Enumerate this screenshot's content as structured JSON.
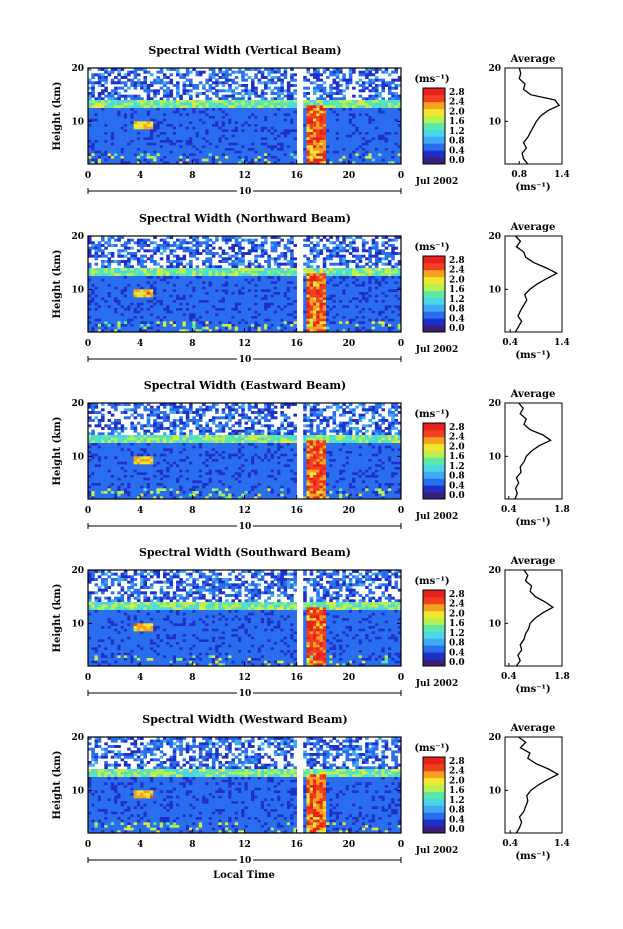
{
  "chart_data": [
    {
      "type": "heatmap",
      "title": "Spectral Width (Vertical Beam)",
      "ylabel": "Height (km)",
      "ylim": [
        2,
        20
      ],
      "y_ticks": [
        "10",
        "20"
      ],
      "xlim": [
        0,
        24
      ],
      "x_ticks": [
        "0",
        "4",
        "8",
        "12",
        "16",
        "20",
        "0"
      ],
      "date_label": "10",
      "month_label": "Jul 2002",
      "colorbar": {
        "unit": "(ms⁻¹)",
        "ticks": [
          "0.0",
          "0.4",
          "0.8",
          "1.2",
          "1.6",
          "2.0",
          "2.4",
          "2.8"
        ]
      },
      "average": {
        "title": "Average",
        "xlabel": "(ms⁻¹)",
        "x_ticks": [
          "0.8",
          "1.4"
        ],
        "xlim": [
          0.6,
          1.4
        ],
        "y_ticks": [
          "10",
          "20"
        ],
        "profile": [
          [
            0.92,
            2
          ],
          [
            0.86,
            3
          ],
          [
            0.84,
            4
          ],
          [
            0.9,
            5
          ],
          [
            0.86,
            6
          ],
          [
            0.92,
            7
          ],
          [
            0.96,
            8
          ],
          [
            1.0,
            9
          ],
          [
            1.04,
            10
          ],
          [
            1.1,
            11
          ],
          [
            1.2,
            12
          ],
          [
            1.36,
            13
          ],
          [
            1.3,
            14
          ],
          [
            0.96,
            15
          ],
          [
            0.86,
            16
          ],
          [
            0.88,
            17
          ],
          [
            0.8,
            18
          ],
          [
            0.82,
            19
          ],
          [
            0.8,
            20
          ]
        ]
      }
    },
    {
      "type": "heatmap",
      "title": "Spectral Width (Northward Beam)",
      "ylabel": "Height (km)",
      "ylim": [
        2,
        20
      ],
      "y_ticks": [
        "10",
        "20"
      ],
      "xlim": [
        0,
        24
      ],
      "x_ticks": [
        "0",
        "4",
        "8",
        "12",
        "16",
        "20",
        "0"
      ],
      "date_label": "10",
      "month_label": "Jul 2002",
      "colorbar": {
        "unit": "(ms⁻¹)",
        "ticks": [
          "0.0",
          "0.4",
          "0.8",
          "1.2",
          "1.6",
          "2.0",
          "2.4",
          "2.8"
        ]
      },
      "average": {
        "title": "Average",
        "xlabel": "(ms⁻¹)",
        "x_ticks": [
          "0.4",
          "1.4"
        ],
        "xlim": [
          0.3,
          1.4
        ],
        "y_ticks": [
          "10",
          "20"
        ],
        "profile": [
          [
            0.5,
            2
          ],
          [
            0.56,
            3
          ],
          [
            0.62,
            4
          ],
          [
            0.55,
            5
          ],
          [
            0.6,
            6
          ],
          [
            0.66,
            7
          ],
          [
            0.72,
            8
          ],
          [
            0.68,
            9
          ],
          [
            0.78,
            10
          ],
          [
            0.92,
            11
          ],
          [
            1.1,
            12
          ],
          [
            1.3,
            13
          ],
          [
            1.1,
            14
          ],
          [
            0.86,
            15
          ],
          [
            0.7,
            16
          ],
          [
            0.66,
            17
          ],
          [
            0.52,
            18
          ],
          [
            0.6,
            19
          ],
          [
            0.5,
            20
          ]
        ]
      }
    },
    {
      "type": "heatmap",
      "title": "Spectral Width (Eastward Beam)",
      "ylabel": "Height (km)",
      "ylim": [
        2,
        20
      ],
      "y_ticks": [
        "10",
        "20"
      ],
      "xlim": [
        0,
        24
      ],
      "x_ticks": [
        "0",
        "4",
        "8",
        "12",
        "16",
        "20",
        "0"
      ],
      "date_label": "10",
      "month_label": "Jul 2002",
      "colorbar": {
        "unit": "(ms⁻¹)",
        "ticks": [
          "0.0",
          "0.4",
          "0.8",
          "1.2",
          "1.6",
          "2.0",
          "2.4",
          "2.8"
        ]
      },
      "average": {
        "title": "Average",
        "xlabel": "(ms⁻¹)",
        "x_ticks": [
          "0.4",
          "1.8"
        ],
        "xlim": [
          0.3,
          1.8
        ],
        "y_ticks": [
          "10",
          "20"
        ],
        "profile": [
          [
            0.56,
            2
          ],
          [
            0.62,
            3
          ],
          [
            0.58,
            4
          ],
          [
            0.66,
            5
          ],
          [
            0.6,
            6
          ],
          [
            0.72,
            7
          ],
          [
            0.7,
            8
          ],
          [
            0.8,
            9
          ],
          [
            0.86,
            10
          ],
          [
            1.0,
            11
          ],
          [
            1.2,
            12
          ],
          [
            1.5,
            13
          ],
          [
            1.3,
            14
          ],
          [
            0.96,
            15
          ],
          [
            0.8,
            16
          ],
          [
            0.86,
            17
          ],
          [
            0.7,
            18
          ],
          [
            0.78,
            19
          ],
          [
            0.66,
            20
          ]
        ]
      }
    },
    {
      "type": "heatmap",
      "title": "Spectral Width (Southward Beam)",
      "ylabel": "Height (km)",
      "ylim": [
        2,
        20
      ],
      "y_ticks": [
        "10",
        "20"
      ],
      "xlim": [
        0,
        24
      ],
      "x_ticks": [
        "0",
        "4",
        "8",
        "12",
        "16",
        "20",
        "0"
      ],
      "date_label": "10",
      "month_label": "Jul 2002",
      "colorbar": {
        "unit": "(ms⁻¹)",
        "ticks": [
          "0.0",
          "0.4",
          "0.8",
          "1.2",
          "1.6",
          "2.0",
          "2.4",
          "2.8"
        ]
      },
      "average": {
        "title": "Average",
        "xlabel": "(ms⁻¹)",
        "x_ticks": [
          "0.4",
          "1.8"
        ],
        "xlim": [
          0.3,
          1.8
        ],
        "y_ticks": [
          "10",
          "20"
        ],
        "profile": [
          [
            0.6,
            2
          ],
          [
            0.7,
            3
          ],
          [
            0.64,
            4
          ],
          [
            0.74,
            5
          ],
          [
            0.7,
            6
          ],
          [
            0.8,
            7
          ],
          [
            0.84,
            8
          ],
          [
            0.92,
            9
          ],
          [
            0.96,
            10
          ],
          [
            1.1,
            11
          ],
          [
            1.3,
            12
          ],
          [
            1.56,
            13
          ],
          [
            1.36,
            14
          ],
          [
            1.1,
            15
          ],
          [
            0.96,
            16
          ],
          [
            1.0,
            17
          ],
          [
            0.84,
            18
          ],
          [
            0.9,
            19
          ],
          [
            0.8,
            20
          ]
        ]
      }
    },
    {
      "type": "heatmap",
      "title": "Spectral Width (Westward Beam)",
      "ylabel": "Height (km)",
      "ylim": [
        2,
        20
      ],
      "y_ticks": [
        "10",
        "20"
      ],
      "xlim": [
        0,
        24
      ],
      "x_ticks": [
        "0",
        "4",
        "8",
        "12",
        "16",
        "20",
        "0"
      ],
      "date_label": "10",
      "month_label": "Jul 2002",
      "xlabel": "Local Time",
      "colorbar": {
        "unit": "(ms⁻¹)",
        "ticks": [
          "0.0",
          "0.4",
          "0.8",
          "1.2",
          "1.6",
          "2.0",
          "2.4",
          "2.8"
        ]
      },
      "average": {
        "title": "Average",
        "xlabel": "(ms⁻¹)",
        "x_ticks": [
          "0.4",
          "1.4"
        ],
        "xlim": [
          0.3,
          1.4
        ],
        "y_ticks": [
          "10",
          "20"
        ],
        "profile": [
          [
            0.52,
            2
          ],
          [
            0.58,
            3
          ],
          [
            0.62,
            4
          ],
          [
            0.58,
            5
          ],
          [
            0.66,
            6
          ],
          [
            0.7,
            7
          ],
          [
            0.74,
            8
          ],
          [
            0.72,
            9
          ],
          [
            0.8,
            10
          ],
          [
            0.94,
            11
          ],
          [
            1.12,
            12
          ],
          [
            1.32,
            13
          ],
          [
            1.14,
            14
          ],
          [
            0.9,
            15
          ],
          [
            0.74,
            16
          ],
          [
            0.78,
            17
          ],
          [
            0.6,
            18
          ],
          [
            0.7,
            19
          ],
          [
            0.56,
            20
          ]
        ]
      }
    }
  ],
  "colorscale": [
    "#3a1f7a",
    "#1f30c8",
    "#2a6ef0",
    "#3fa9f5",
    "#48d6e8",
    "#5ee8a8",
    "#b8f050",
    "#f0e830",
    "#f8a020",
    "#f04020",
    "#e8201c"
  ]
}
